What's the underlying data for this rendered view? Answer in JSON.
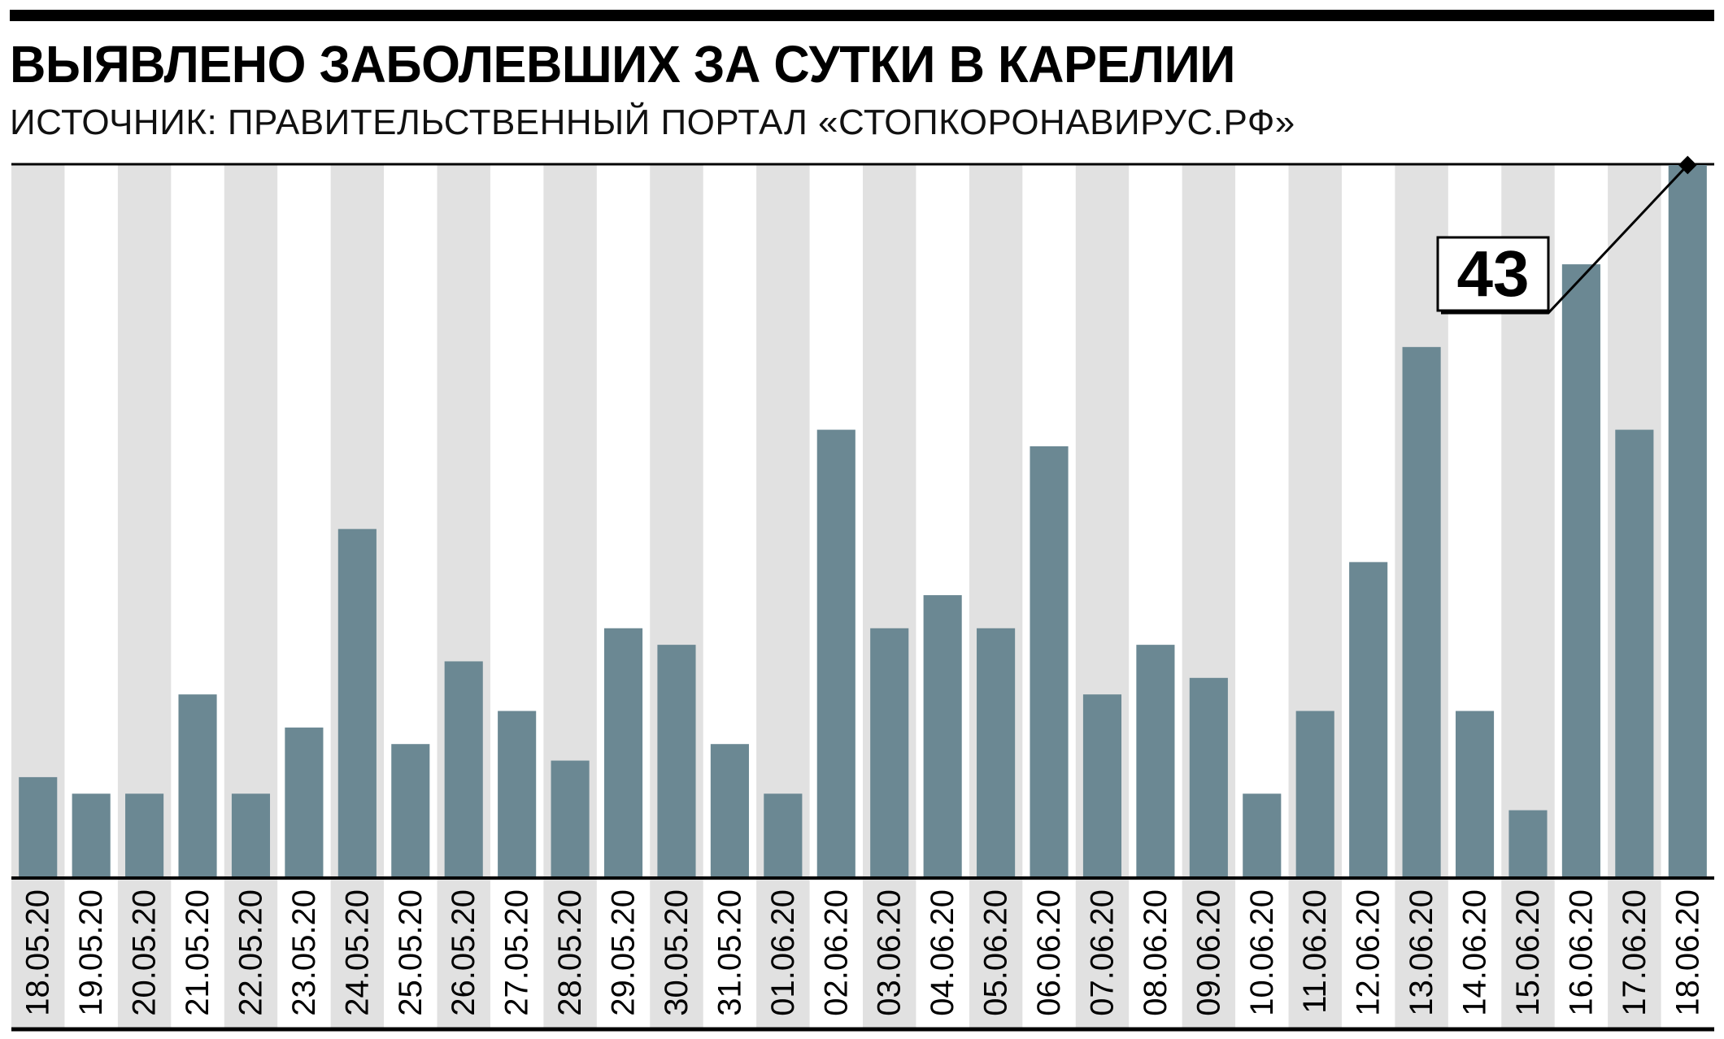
{
  "title": {
    "main": "ВЫЯВЛЕНО ЗАБОЛЕВШИХ ЗА СУТКИ В ",
    "emphasis": "КАРЕЛИИ"
  },
  "subtitle": "ИСТОЧНИК: ПРАВИТЕЛЬСТВЕННЫЙ ПОРТАЛ «СТОПКОРОНАВИРУС.РФ»",
  "colors": {
    "bar": "#6b8893",
    "band": "#e1e1e1",
    "ink": "#000000"
  },
  "chart_data": {
    "type": "bar",
    "title": "ВЫЯВЛЕНО ЗАБОЛЕВШИХ ЗА СУТКИ В КАРЕЛИИ",
    "xlabel": "",
    "ylabel": "",
    "ylim": [
      0,
      43
    ],
    "grid": false,
    "categories": [
      "18.05.20",
      "19.05.20",
      "20.05.20",
      "21.05.20",
      "22.05.20",
      "23.05.20",
      "24.05.20",
      "25.05.20",
      "26.05.20",
      "27.05.20",
      "28.05.20",
      "29.05.20",
      "30.05.20",
      "31.05.20",
      "01.06.20",
      "02.06.20",
      "03.06.20",
      "04.06.20",
      "05.06.20",
      "06.06.20",
      "07.06.20",
      "08.06.20",
      "09.06.20",
      "10.06.20",
      "11.06.20",
      "12.06.20",
      "13.06.20",
      "14.06.20",
      "15.06.20",
      "16.06.20",
      "17.06.20",
      "18.06.20"
    ],
    "values": [
      6,
      5,
      5,
      11,
      5,
      9,
      21,
      8,
      13,
      10,
      7,
      15,
      14,
      8,
      5,
      27,
      15,
      17,
      15,
      26,
      11,
      14,
      12,
      5,
      10,
      19,
      32,
      10,
      4,
      37,
      27,
      43
    ],
    "annotation": {
      "category": "18.06.20",
      "label": "43"
    }
  }
}
